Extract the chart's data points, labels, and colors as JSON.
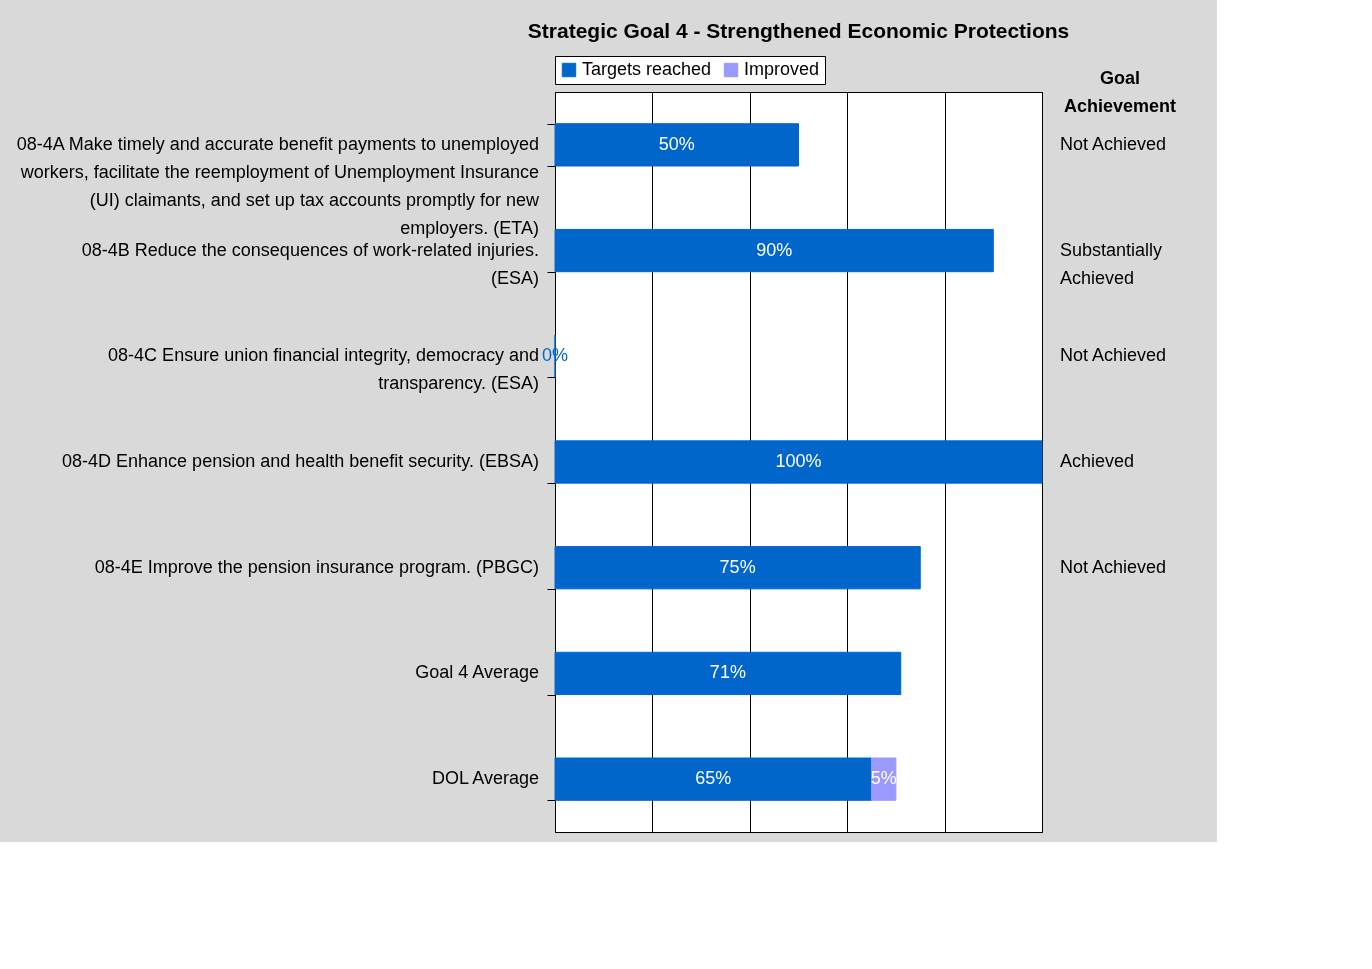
{
  "chart_data": {
    "type": "bar",
    "title": "Strategic Goal 4 - Strengthened Economic Protections",
    "orientation": "horizontal",
    "stacked": true,
    "grid": "x",
    "legend": "top",
    "tick_labels": "y",
    "categories": [
      "08-4A  Make timely and accurate benefit payments to unemployed workers, facilitate the reemployment of Unemployment Insurance (UI) claimants, and set up tax accounts promptly for new employers.  (ETA)",
      "08-4B  Reduce the consequences of work-related injuries.  (ESA)",
      "08-4C  Ensure union financial integrity, democracy and transparency.  (ESA)",
      "08-4D  Enhance pension and health benefit security.  (EBSA)",
      "08-4E  Improve the pension insurance program.  (PBGC)",
      "Goal 4 Average",
      "DOL Average"
    ],
    "series": [
      {
        "name": "Targets reached",
        "color": "#0066cc",
        "values": [
          50,
          90,
          0,
          100,
          75,
          71,
          65
        ],
        "value_labels": [
          "50%",
          "90%",
          "0%",
          "100%",
          "75%",
          "71%",
          "65%"
        ]
      },
      {
        "name": "Improved",
        "color": "#9999ff",
        "values": [
          null,
          null,
          null,
          null,
          null,
          null,
          5
        ],
        "value_labels": [
          null,
          null,
          null,
          null,
          null,
          null,
          "5%"
        ]
      }
    ],
    "annotations": [
      "Goal Achievement",
      "Not Achieved",
      "Substantially Achieved",
      "Not Achieved",
      "Achieved",
      "Not Achieved"
    ]
  }
}
